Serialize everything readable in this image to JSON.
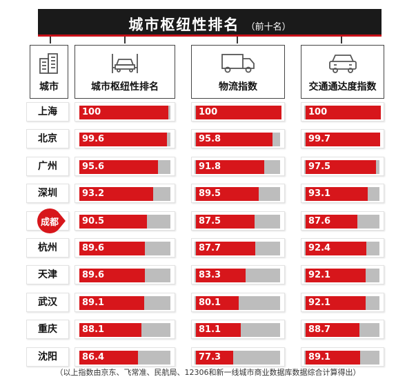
{
  "title": "城市枢纽性排名",
  "title_sub": "（前十名）",
  "headers": {
    "city": "城市",
    "hub": "城市枢纽性排名",
    "logistics": "物流指数",
    "traffic": "交通通达度指数"
  },
  "icons": {
    "city": "building-icon",
    "hub": "car-lift-icon",
    "logistics": "truck-icon",
    "traffic": "car-icon"
  },
  "colors": {
    "bar": "#d7161b",
    "bar_track": "#bdbdbd",
    "title_bg": "#1a1a1a"
  },
  "highlight_city": "成都",
  "chart_data": {
    "type": "bar",
    "title": "城市枢纽性排名",
    "subtitle": "（前十名）",
    "orientation": "horizontal",
    "categories": [
      "上海",
      "北京",
      "广州",
      "深圳",
      "成都",
      "杭州",
      "天津",
      "武汉",
      "重庆",
      "沈阳"
    ],
    "series": [
      {
        "name": "城市枢纽性排名",
        "values": [
          100,
          99.6,
          95.6,
          93.2,
          90.5,
          89.6,
          89.6,
          89.1,
          88.1,
          86.4
        ]
      },
      {
        "name": "物流指数",
        "values": [
          100,
          95.8,
          91.8,
          89.5,
          87.5,
          87.7,
          83.3,
          80.1,
          81.1,
          77.3
        ]
      },
      {
        "name": "交通通达度指数",
        "values": [
          100,
          99.7,
          97.5,
          93.1,
          87.6,
          92.4,
          92.1,
          92.1,
          88.7,
          89.1
        ]
      }
    ],
    "value_labels": [
      [
        "100",
        "99.6",
        "95.6",
        "93.2",
        "90.5",
        "89.6",
        "89.6",
        "89.1",
        "88.1",
        "86.4"
      ],
      [
        "100",
        "95.8",
        "91.8",
        "89.5",
        "87.5",
        "87.7",
        "83.3",
        "80.1",
        "81.1",
        "77.3"
      ],
      [
        "100",
        "99.7",
        "97.5",
        "93.1",
        "87.6",
        "92.4",
        "92.1",
        "92.1",
        "88.7",
        "89.1"
      ]
    ],
    "xlim": [
      0,
      100
    ]
  },
  "footnote": "（以上指数由京东、飞常准、民航局、12306和新一线城市商业数据库数据综合计算得出）"
}
